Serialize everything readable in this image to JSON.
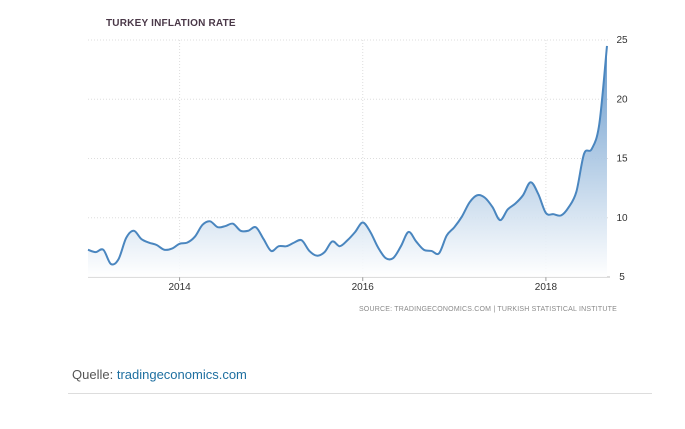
{
  "caption": {
    "prefix": "Quelle:",
    "link_text": "tradingeconomics.com"
  },
  "chart_data": {
    "type": "area",
    "title": "TURKEY INFLATION RATE",
    "source": "SOURCE: TRADINGECONOMICS.COM | TURKISH STATISTICAL INSTITUTE",
    "xlabel": "",
    "ylabel": "",
    "x_ticks": [
      "2014",
      "2016",
      "2018"
    ],
    "y_ticks": [
      5,
      10,
      15,
      20,
      25
    ],
    "ylim": [
      5,
      25
    ],
    "xlim": [
      2013.0,
      2018.7
    ],
    "grid": true,
    "y_axis_position": "right",
    "colors": {
      "line": "#4a86bf",
      "fill_top": "#5c92c8",
      "fill_bottom": "#ffffff",
      "grid": "#dddddd"
    },
    "x": [
      2013.0,
      2013.083,
      2013.167,
      2013.25,
      2013.333,
      2013.417,
      2013.5,
      2013.583,
      2013.667,
      2013.75,
      2013.833,
      2013.917,
      2014.0,
      2014.083,
      2014.167,
      2014.25,
      2014.333,
      2014.417,
      2014.5,
      2014.583,
      2014.667,
      2014.75,
      2014.833,
      2014.917,
      2015.0,
      2015.083,
      2015.167,
      2015.25,
      2015.333,
      2015.417,
      2015.5,
      2015.583,
      2015.667,
      2015.75,
      2015.833,
      2015.917,
      2016.0,
      2016.083,
      2016.167,
      2016.25,
      2016.333,
      2016.417,
      2016.5,
      2016.583,
      2016.667,
      2016.75,
      2016.833,
      2016.917,
      2017.0,
      2017.083,
      2017.167,
      2017.25,
      2017.333,
      2017.417,
      2017.5,
      2017.583,
      2017.667,
      2017.75,
      2017.833,
      2017.917,
      2018.0,
      2018.083,
      2018.167,
      2018.25,
      2018.333,
      2018.417,
      2018.5,
      2018.583,
      2018.667
    ],
    "values": [
      7.3,
      7.1,
      7.3,
      6.1,
      6.5,
      8.3,
      8.9,
      8.2,
      7.9,
      7.7,
      7.3,
      7.4,
      7.8,
      7.9,
      8.4,
      9.4,
      9.7,
      9.2,
      9.3,
      9.5,
      8.9,
      8.9,
      9.2,
      8.2,
      7.2,
      7.6,
      7.6,
      7.9,
      8.1,
      7.2,
      6.8,
      7.1,
      8.0,
      7.6,
      8.1,
      8.8,
      9.6,
      8.8,
      7.5,
      6.6,
      6.6,
      7.6,
      8.8,
      8.0,
      7.3,
      7.2,
      7.0,
      8.5,
      9.2,
      10.1,
      11.3,
      11.9,
      11.7,
      10.9,
      9.8,
      10.7,
      11.2,
      11.9,
      13.0,
      12.0,
      10.4,
      10.3,
      10.2,
      10.9,
      12.2,
      15.4,
      15.8,
      17.9,
      24.5
    ]
  }
}
